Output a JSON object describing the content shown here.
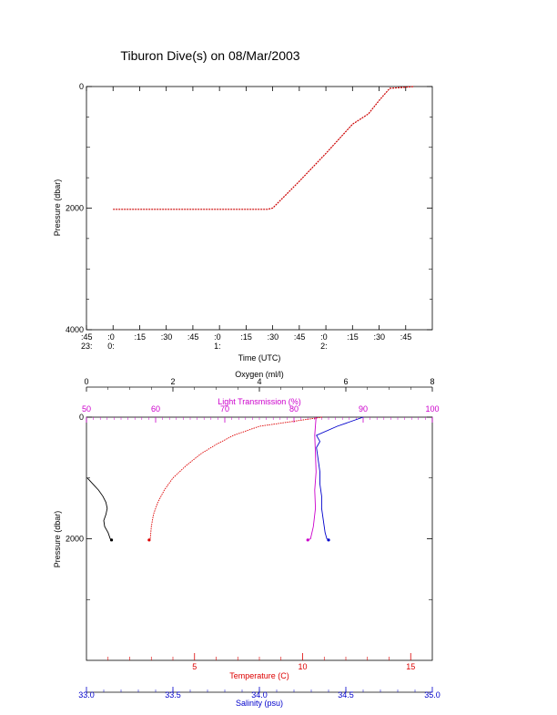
{
  "title": "Tiburon Dive(s) on 08/Mar/2003",
  "colors": {
    "axis": "#000000",
    "temperature": "#dd0000",
    "salinity": "#0000cc",
    "light_transmission": "#cc00cc",
    "oxygen": "#000000",
    "timeseries_line": "#cc0000"
  },
  "chart_data": [
    {
      "type": "line",
      "ylabel": "Pressure (dbar)",
      "xlabel": "Time (UTC)",
      "ylim": [
        4000,
        0
      ],
      "yticks": [
        0,
        2000,
        4000
      ],
      "xlim": [
        -0.25,
        3.0
      ],
      "x_units": "hours after 23:45 UTC",
      "xticks": [
        {
          "x": -0.25,
          "top": ":45",
          "bottom": "23:"
        },
        {
          "x": 0.0,
          "top": ":0",
          "bottom": "0:"
        },
        {
          "x": 0.25,
          "top": ":15",
          "bottom": ""
        },
        {
          "x": 0.5,
          "top": ":30",
          "bottom": ""
        },
        {
          "x": 0.75,
          "top": ":45",
          "bottom": ""
        },
        {
          "x": 1.0,
          "top": ":0",
          "bottom": "1:"
        },
        {
          "x": 1.25,
          "top": ":15",
          "bottom": ""
        },
        {
          "x": 1.5,
          "top": ":30",
          "bottom": ""
        },
        {
          "x": 1.75,
          "top": ":45",
          "bottom": ""
        },
        {
          "x": 2.0,
          "top": ":0",
          "bottom": "2:"
        },
        {
          "x": 2.25,
          "top": ":15",
          "bottom": ""
        },
        {
          "x": 2.5,
          "top": ":30",
          "bottom": ""
        },
        {
          "x": 2.75,
          "top": ":45",
          "bottom": ""
        }
      ],
      "series": [
        {
          "x": [
            0.0,
            0.5,
            1.0,
            1.25,
            1.45,
            1.5,
            1.75,
            2.0,
            2.25,
            2.4,
            2.5,
            2.6,
            2.75,
            2.83
          ],
          "y": [
            2020,
            2020,
            2020,
            2020,
            2020,
            2000,
            1560,
            1100,
            620,
            450,
            230,
            30,
            10,
            0
          ]
        }
      ]
    },
    {
      "type": "line",
      "ylabel": "Pressure (dbar)",
      "ylim": [
        4000,
        0
      ],
      "yticks": [
        0,
        2000
      ],
      "axes": {
        "temperature": {
          "label": "Temperature (C)",
          "range": [
            0,
            16
          ],
          "ticks": [
            5,
            10,
            15
          ]
        },
        "salinity": {
          "label": "Salinity (psu)",
          "range": [
            33.0,
            35.0
          ],
          "ticks": [
            "33.0",
            "33.5",
            "34.0",
            "34.5",
            "35.0"
          ]
        },
        "light_transmission": {
          "label": "Light Transmission (%)",
          "range": [
            50,
            100
          ],
          "ticks": [
            50,
            60,
            70,
            80,
            90,
            100
          ]
        },
        "oxygen": {
          "label": "Oxygen (ml/l)",
          "range": [
            0,
            8
          ],
          "ticks": [
            0,
            2,
            4,
            6,
            8
          ]
        }
      },
      "series": [
        {
          "axis": "temperature",
          "pressure": [
            0,
            150,
            300,
            450,
            600,
            800,
            1000,
            1200,
            1400,
            1600,
            1800,
            2000,
            2020
          ],
          "values": [
            10.9,
            8.0,
            6.8,
            6.0,
            5.3,
            4.6,
            4.0,
            3.6,
            3.3,
            3.1,
            3.0,
            2.95,
            2.9
          ]
        },
        {
          "axis": "salinity",
          "pressure": [
            0,
            150,
            300,
            400,
            500,
            700,
            900,
            1100,
            1300,
            1500,
            1700,
            1900,
            2000,
            2020
          ],
          "values": [
            34.6,
            34.45,
            34.33,
            34.35,
            34.33,
            34.34,
            34.35,
            34.35,
            34.36,
            34.36,
            34.37,
            34.38,
            34.39,
            34.4
          ]
        },
        {
          "axis": "light_transmission",
          "pressure": [
            0,
            300,
            600,
            900,
            1200,
            1500,
            1800,
            2000,
            2020
          ],
          "values": [
            83.2,
            83.0,
            83.1,
            83.2,
            83.0,
            83.1,
            82.8,
            82.4,
            82.0
          ]
        },
        {
          "axis": "oxygen",
          "pressure": [
            1000,
            1100,
            1200,
            1300,
            1400,
            1500,
            1600,
            1700,
            1800,
            1900,
            2000,
            2020
          ],
          "values": [
            0.02,
            0.15,
            0.28,
            0.38,
            0.45,
            0.48,
            0.45,
            0.4,
            0.42,
            0.5,
            0.55,
            0.58
          ]
        }
      ]
    }
  ]
}
